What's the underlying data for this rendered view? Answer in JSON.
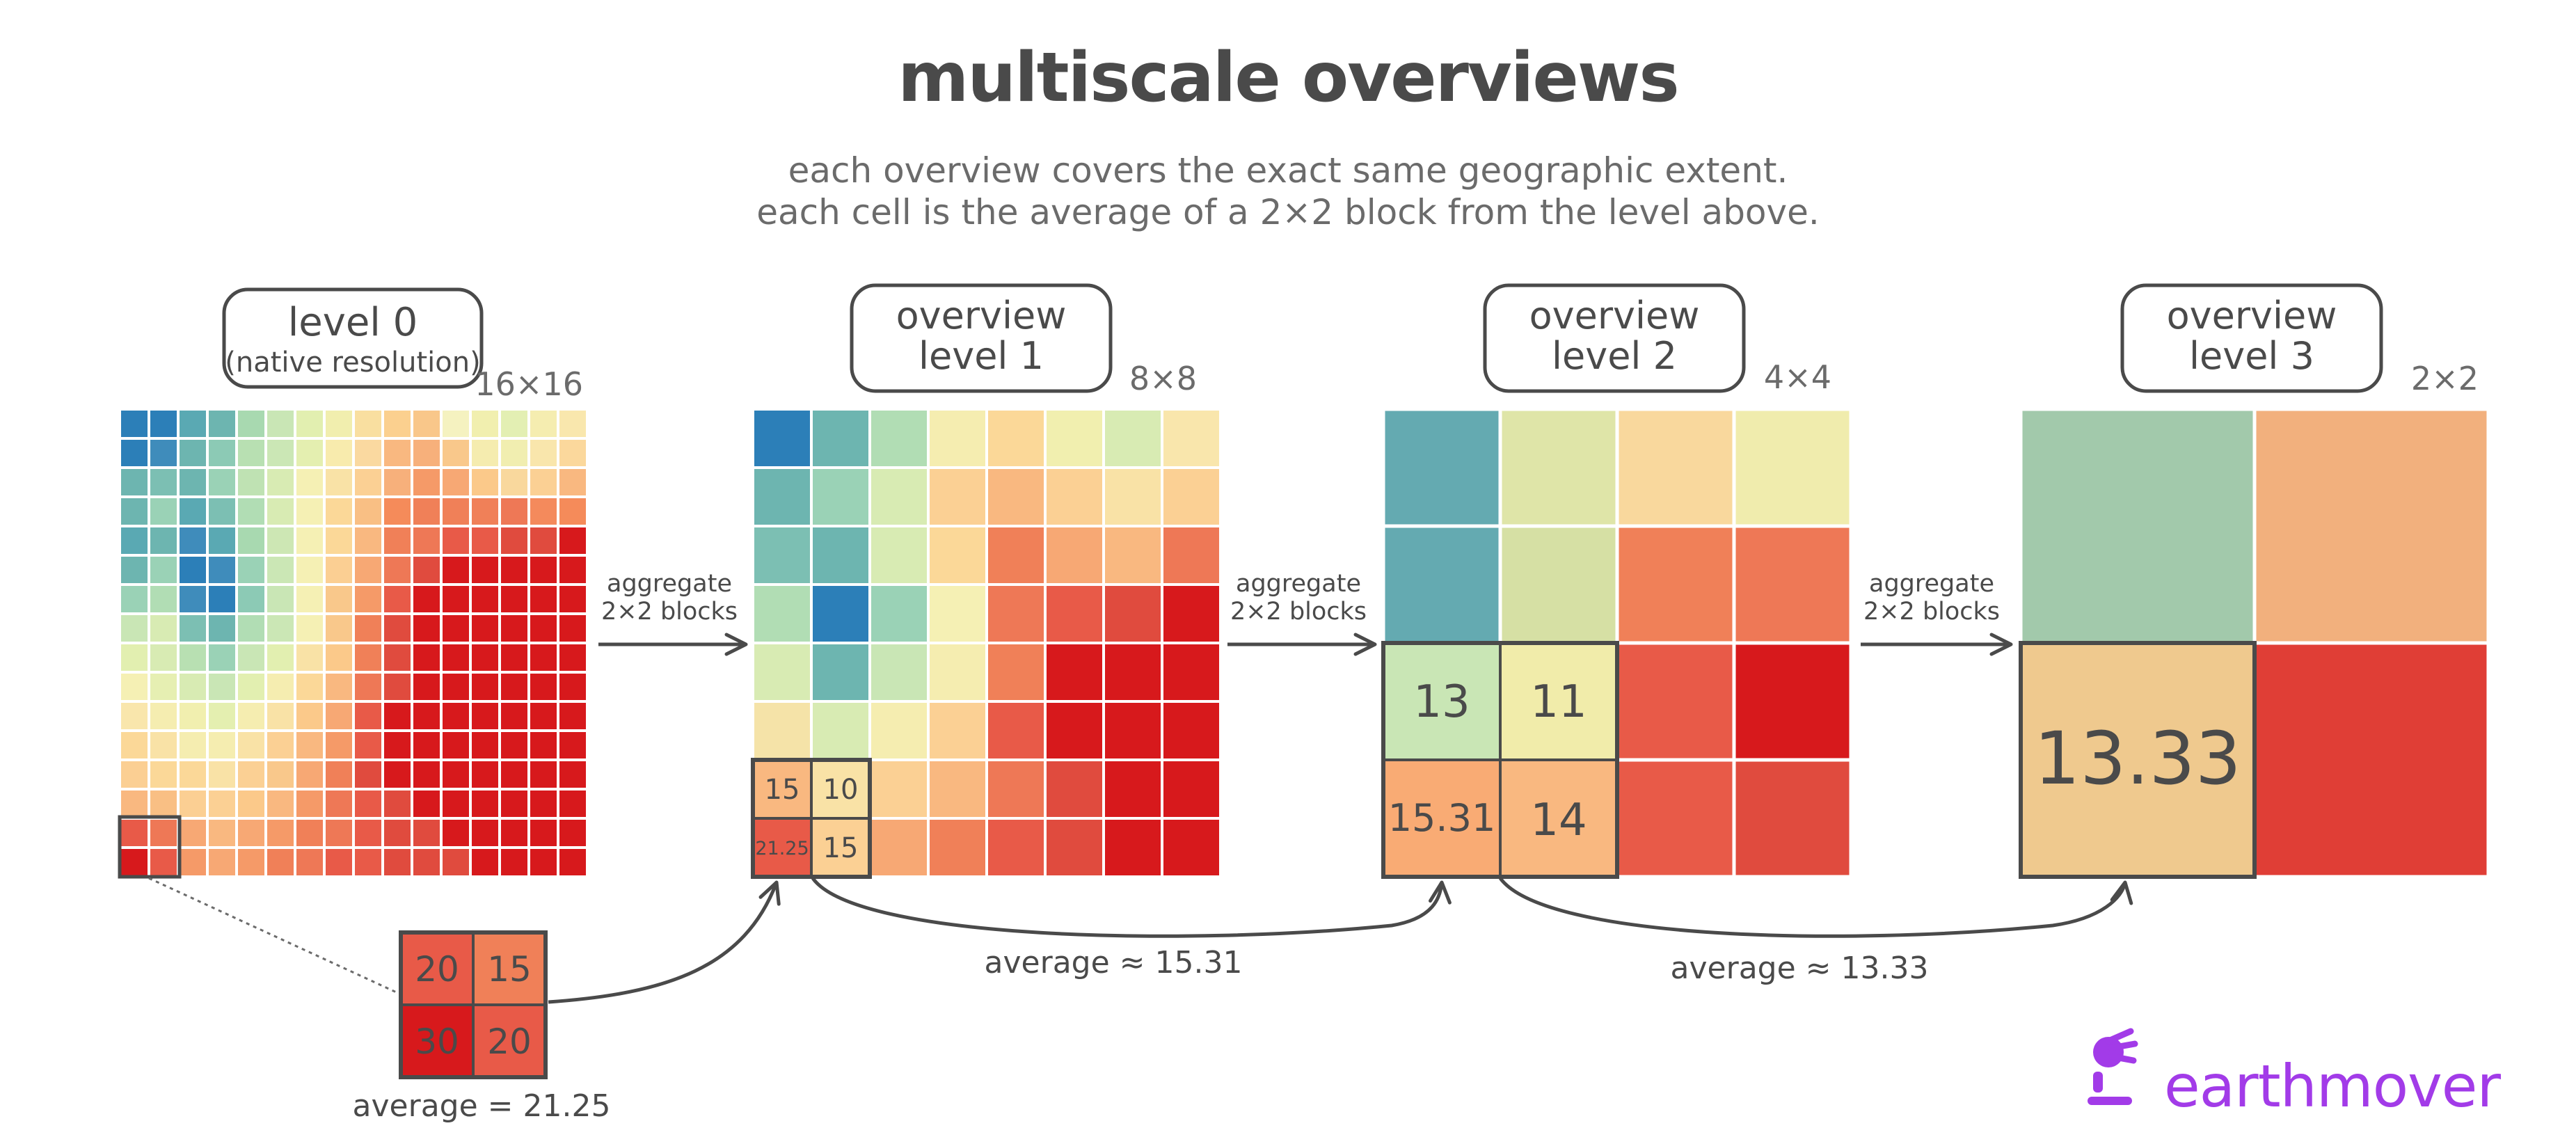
{
  "header": {
    "title": "multiscale overviews",
    "subtitle_line1": "each overview covers the exact same geographic extent.",
    "subtitle_line2": "each cell is the average of a 2×2 block from the level above."
  },
  "levels": [
    {
      "label_line1": "level 0",
      "label_line2": "(native resolution)",
      "size": "16×16",
      "n": 16
    },
    {
      "label_line1": "overview",
      "label_line2": "level 1",
      "size": "8×8",
      "n": 8
    },
    {
      "label_line1": "overview",
      "label_line2": "level 2",
      "size": "4×4",
      "n": 4
    },
    {
      "label_line1": "overview",
      "label_line2": "level 3",
      "size": "2×2",
      "n": 2
    }
  ],
  "arrows": {
    "aggregate_line1": "aggregate",
    "aggregate_line2": "2×2 blocks"
  },
  "callouts": {
    "level0_block": {
      "values": [
        "20",
        "15",
        "30",
        "20"
      ],
      "caption": "average = 21.25"
    },
    "level1_block": {
      "values": [
        "15",
        "10",
        "21.25",
        "15"
      ],
      "caption": "average ≈ 15.31"
    },
    "level2_block": {
      "values": [
        "13",
        "11",
        "15.31",
        "14"
      ],
      "caption": "average ≈ 13.33"
    },
    "level3_block": {
      "values": [
        "13.33"
      ]
    }
  },
  "brand": {
    "name": "earthmover",
    "color": "#a23be8"
  },
  "colors": {
    "blue": "#2c7fb8",
    "teal": "#5aa9b3",
    "green_light": "#a8d9b0",
    "yellow": "#f5edb0",
    "peach": "#fbc98a",
    "orange": "#f58b5a",
    "red": "#d7191c",
    "grid": "#ffffff",
    "stroke": "#4a4a4a"
  },
  "grids": {
    "level0": [
      [
        "#2c7fb8",
        "#2c7fb8",
        "#5aa9b3",
        "#6db5b0",
        "#a8d9b0",
        "#c9e6b5",
        "#e2efb0",
        "#f1eeae",
        "#f9dfa0",
        "#fbd08f",
        "#f9c78a",
        "#f5f2c0",
        "#f1efaf",
        "#e3efb3",
        "#f5edb0",
        "#f9e7ad"
      ],
      [
        "#2c7fb8",
        "#3f8cbb",
        "#6db5b0",
        "#8ccab5",
        "#b8e0b2",
        "#cbe7b5",
        "#e4efb0",
        "#f8ebad",
        "#fad9a0",
        "#f9b880",
        "#f7b07b",
        "#f9c88b",
        "#f5ecaf",
        "#f1eeb0",
        "#f9e6ac",
        "#fbd89c"
      ],
      [
        "#6db5b0",
        "#7cbfb3",
        "#6db5b0",
        "#9ad2b6",
        "#bfe2b3",
        "#d8ebb3",
        "#f5f0b4",
        "#f9e2a6",
        "#fbd094",
        "#f7b07b",
        "#f59a68",
        "#f7a874",
        "#fbc98a",
        "#f9d89d",
        "#fbd094",
        "#f9b880"
      ],
      [
        "#6db5b0",
        "#9ad2b6",
        "#5aa9b3",
        "#7cbfb3",
        "#b1ddb4",
        "#d8ebb3",
        "#f5f0b4",
        "#fbd898",
        "#f9bf84",
        "#f58b5a",
        "#f08058",
        "#f08058",
        "#f08058",
        "#ee7856",
        "#f48a5c",
        "#f58b5a"
      ],
      [
        "#5aa9b3",
        "#6db5b0",
        "#3f8cbb",
        "#5aa9b3",
        "#a8d9b0",
        "#cde7b4",
        "#f5f0b4",
        "#fbd898",
        "#f9b880",
        "#f08058",
        "#ee7856",
        "#e85a48",
        "#e85a48",
        "#e04b3e",
        "#e04b3e",
        "#d7191c"
      ],
      [
        "#6db5b0",
        "#9ad2b6",
        "#2c7fb8",
        "#3f8cbb",
        "#9ad2b6",
        "#cbe7b5",
        "#f5f0b4",
        "#fbcf93",
        "#f7a874",
        "#ee7856",
        "#e04b3e",
        "#d7191c",
        "#d7191c",
        "#d7191c",
        "#d7191c",
        "#d7191c"
      ],
      [
        "#9ad2b6",
        "#b1ddb4",
        "#3f8cbb",
        "#2c7fb8",
        "#8ccab5",
        "#c9e6b5",
        "#f5f0b4",
        "#f9c88b",
        "#f59a68",
        "#e85a48",
        "#d7191c",
        "#d7191c",
        "#d7191c",
        "#d7191c",
        "#d7191c",
        "#d7191c"
      ],
      [
        "#c9e6b5",
        "#d8ebb3",
        "#7cbfb3",
        "#6db5b0",
        "#b1ddb4",
        "#cbe7b5",
        "#f5f0b4",
        "#f9c88b",
        "#f08058",
        "#e04b3e",
        "#d7191c",
        "#d7191c",
        "#d7191c",
        "#d7191c",
        "#d7191c",
        "#d7191c"
      ],
      [
        "#e2efb0",
        "#d8ebb3",
        "#b8e0b2",
        "#9ad2b6",
        "#c9e6b5",
        "#e2efb0",
        "#f9e2a6",
        "#fbc98a",
        "#f08058",
        "#e04b3e",
        "#d7191c",
        "#d7191c",
        "#d7191c",
        "#d7191c",
        "#d7191c",
        "#d7191c"
      ],
      [
        "#f5f0b4",
        "#e6efb2",
        "#d8ebb3",
        "#c9e6b5",
        "#e2efb0",
        "#f5edb0",
        "#fbd898",
        "#f9b880",
        "#ee7856",
        "#e04b3e",
        "#d7191c",
        "#d7191c",
        "#d7191c",
        "#d7191c",
        "#d7191c",
        "#d7191c"
      ],
      [
        "#f9e6ac",
        "#f5edb0",
        "#f1efaf",
        "#e4efb0",
        "#f5edb0",
        "#f9e2a6",
        "#fbc98a",
        "#f7a874",
        "#e85a48",
        "#d7191c",
        "#d7191c",
        "#d7191c",
        "#d7191c",
        "#d7191c",
        "#d7191c",
        "#d7191c"
      ],
      [
        "#fbd898",
        "#f9e2a6",
        "#f5edb0",
        "#f5edb0",
        "#f9e2a6",
        "#fbd094",
        "#f9b880",
        "#f59a68",
        "#e85a48",
        "#d7191c",
        "#d7191c",
        "#d7191c",
        "#d7191c",
        "#d7191c",
        "#d7191c",
        "#d7191c"
      ],
      [
        "#fbcf93",
        "#fbd898",
        "#fbd898",
        "#f9e2a6",
        "#fbd094",
        "#f9c88b",
        "#f7a874",
        "#f08058",
        "#e04b3e",
        "#d7191c",
        "#d7191c",
        "#d7191c",
        "#d7191c",
        "#d7191c",
        "#d7191c",
        "#d7191c"
      ],
      [
        "#f9b880",
        "#f9bf84",
        "#fbcf93",
        "#fbd094",
        "#fbc98a",
        "#f9b880",
        "#f59a68",
        "#ee7856",
        "#e85a48",
        "#e04b3e",
        "#d7191c",
        "#d7191c",
        "#d7191c",
        "#d7191c",
        "#d7191c",
        "#d7191c"
      ],
      [
        "#e85a48",
        "#ee7856",
        "#f7a874",
        "#f9b880",
        "#f7a874",
        "#f59a68",
        "#f08058",
        "#ee7856",
        "#e85a48",
        "#e04b3e",
        "#e04b3e",
        "#d7191c",
        "#d7191c",
        "#d7191c",
        "#d7191c",
        "#d7191c"
      ],
      [
        "#d7191c",
        "#e85a48",
        "#f59a68",
        "#f7a874",
        "#f59a68",
        "#f08058",
        "#ee7856",
        "#e85a48",
        "#e85a48",
        "#e04b3e",
        "#e04b3e",
        "#e04b3e",
        "#d7191c",
        "#d7191c",
        "#d7191c",
        "#d7191c"
      ]
    ],
    "level1": [
      [
        "#2c7fb8",
        "#6db5b0",
        "#b1ddb4",
        "#f5edb0",
        "#fbd898",
        "#f1efaf",
        "#d8ebb3",
        "#f9e6ac"
      ],
      [
        "#6db5b0",
        "#9ad2b6",
        "#d8ebb3",
        "#fbd094",
        "#f9b880",
        "#fbd094",
        "#f9e2a6",
        "#fbd094"
      ],
      [
        "#7cbfb3",
        "#6db5b0",
        "#d8ebb3",
        "#fbd898",
        "#f08058",
        "#f7a874",
        "#f9b880",
        "#ee7856"
      ],
      [
        "#b1ddb4",
        "#2c7fb8",
        "#9ad2b6",
        "#f5f0b4",
        "#ee7856",
        "#e85a48",
        "#e04b3e",
        "#d7191c"
      ],
      [
        "#d8ebb3",
        "#6db5b0",
        "#c9e6b5",
        "#f5edb0",
        "#f08058",
        "#d7191c",
        "#d7191c",
        "#d7191c"
      ],
      [
        "#f5e3a8",
        "#d8ebb3",
        "#f5edb0",
        "#fbd094",
        "#e85a48",
        "#d7191c",
        "#d7191c",
        "#d7191c"
      ],
      [
        "#f9b880",
        "#f5edb0",
        "#fbd094",
        "#f9b880",
        "#ee7856",
        "#e04b3e",
        "#d7191c",
        "#d7191c"
      ],
      [
        "#e85a48",
        "#f9c88b",
        "#f7a874",
        "#f08058",
        "#e85a48",
        "#e04b3e",
        "#d7191c",
        "#d7191c"
      ]
    ],
    "level2": [
      [
        "#64aab1",
        "#dfe5a8",
        "#f9d89d",
        "#f0ecad"
      ],
      [
        "#64aab1",
        "#d6e0a4",
        "#f08058",
        "#ee7856"
      ],
      [
        "#c9e6b5",
        "#f1ecaa",
        "#e85a48",
        "#d7191c"
      ],
      [
        "#f9ab74",
        "#f9b880",
        "#e85a48",
        "#e04b3e"
      ]
    ],
    "level3": [
      [
        "#a2c9ab",
        "#f2b07d"
      ],
      [
        "#efc98e",
        "#e03e36"
      ]
    ]
  }
}
